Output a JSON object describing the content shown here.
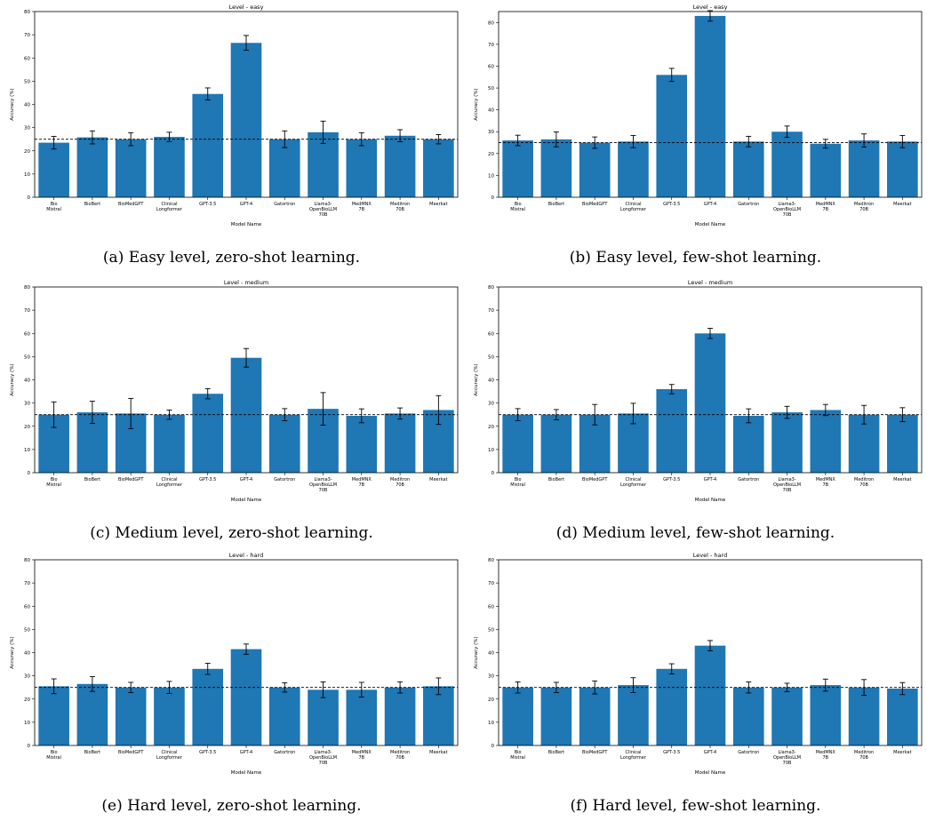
{
  "figure": {
    "bar_color": "#1f77b4",
    "baseline_value": 25,
    "ylabel": "Accuracy (%)",
    "xlabel": "Model Name",
    "models": [
      [
        "Bio",
        "Mistral"
      ],
      [
        "BioBert"
      ],
      [
        "BioMedGPT"
      ],
      [
        "Clinical",
        "Longformer"
      ],
      [
        "GPT-3.5"
      ],
      [
        "GPT-4"
      ],
      [
        "Gatortron"
      ],
      [
        "Llama3-",
        "OpenBioLLM",
        "70B"
      ],
      [
        "MedMNX",
        "7B"
      ],
      [
        "Meditron",
        "70B"
      ],
      [
        "Meerkat"
      ]
    ]
  },
  "chart_data": [
    {
      "type": "bar",
      "title": "Level - easy",
      "caption": "(a) Easy level, zero-shot learning.",
      "ylim": [
        0,
        80
      ],
      "yticks": [
        0,
        10,
        20,
        30,
        40,
        50,
        60,
        70,
        80
      ],
      "values": [
        23.5,
        25.8,
        25.0,
        26.0,
        44.5,
        66.5,
        25.0,
        28.0,
        25.0,
        26.5,
        25.0
      ],
      "errors": [
        2.7,
        2.8,
        2.8,
        2.0,
        2.6,
        3.2,
        3.6,
        4.8,
        2.8,
        2.6,
        2.0
      ],
      "baseline": 25
    },
    {
      "type": "bar",
      "title": "Level - easy",
      "caption": "(b) Easy level, few-shot learning.",
      "ylim": [
        0,
        85
      ],
      "yticks": [
        0,
        10,
        20,
        30,
        40,
        50,
        60,
        70,
        80
      ],
      "values": [
        26.0,
        26.5,
        25.0,
        25.5,
        56.0,
        83.0,
        25.5,
        30.0,
        24.5,
        26.0,
        25.5
      ],
      "errors": [
        2.4,
        3.4,
        2.6,
        2.8,
        3.0,
        2.4,
        2.4,
        2.6,
        2.0,
        3.0,
        2.8
      ],
      "baseline": 25
    },
    {
      "type": "bar",
      "title": "Level - medium",
      "caption": "(c) Medium level, zero-shot learning.",
      "ylim": [
        0,
        80
      ],
      "yticks": [
        0,
        10,
        20,
        30,
        40,
        50,
        60,
        70,
        80
      ],
      "values": [
        25.0,
        26.0,
        25.5,
        25.0,
        34.0,
        49.5,
        25.0,
        27.5,
        24.5,
        25.5,
        27.0
      ],
      "errors": [
        5.5,
        4.8,
        6.5,
        2.0,
        2.2,
        4.0,
        2.6,
        7.0,
        3.0,
        2.4,
        6.2
      ],
      "baseline": 25
    },
    {
      "type": "bar",
      "title": "Level - medium",
      "caption": "(d) Medium level, few-shot learning.",
      "ylim": [
        0,
        80
      ],
      "yticks": [
        0,
        10,
        20,
        30,
        40,
        50,
        60,
        70,
        80
      ],
      "values": [
        25.0,
        25.0,
        25.0,
        25.5,
        36.0,
        60.0,
        24.5,
        26.0,
        27.0,
        25.0,
        25.0
      ],
      "errors": [
        2.6,
        2.2,
        4.4,
        4.4,
        2.0,
        2.2,
        3.0,
        2.6,
        2.4,
        4.0,
        3.0
      ],
      "baseline": 25
    },
    {
      "type": "bar",
      "title": "Level - hard",
      "caption": "(e) Hard level, zero-shot learning.",
      "ylim": [
        0,
        80
      ],
      "yticks": [
        0,
        10,
        20,
        30,
        40,
        50,
        60,
        70,
        80
      ],
      "values": [
        25.5,
        26.5,
        25.0,
        25.0,
        33.0,
        41.5,
        25.0,
        24.0,
        24.0,
        25.0,
        25.5
      ],
      "errors": [
        3.2,
        3.2,
        2.2,
        2.6,
        2.4,
        2.2,
        2.0,
        3.4,
        3.2,
        2.4,
        3.6
      ],
      "baseline": 25
    },
    {
      "type": "bar",
      "title": "Level - hard",
      "caption": "(f) Hard level, few-shot learning.",
      "ylim": [
        0,
        80
      ],
      "yticks": [
        0,
        10,
        20,
        30,
        40,
        50,
        60,
        70,
        80
      ],
      "values": [
        25.0,
        25.0,
        25.0,
        26.0,
        33.0,
        43.0,
        25.0,
        25.0,
        26.0,
        25.0,
        24.5
      ],
      "errors": [
        2.4,
        2.2,
        2.8,
        3.2,
        2.2,
        2.2,
        2.4,
        1.8,
        2.6,
        3.4,
        2.6
      ],
      "baseline": 25
    }
  ]
}
